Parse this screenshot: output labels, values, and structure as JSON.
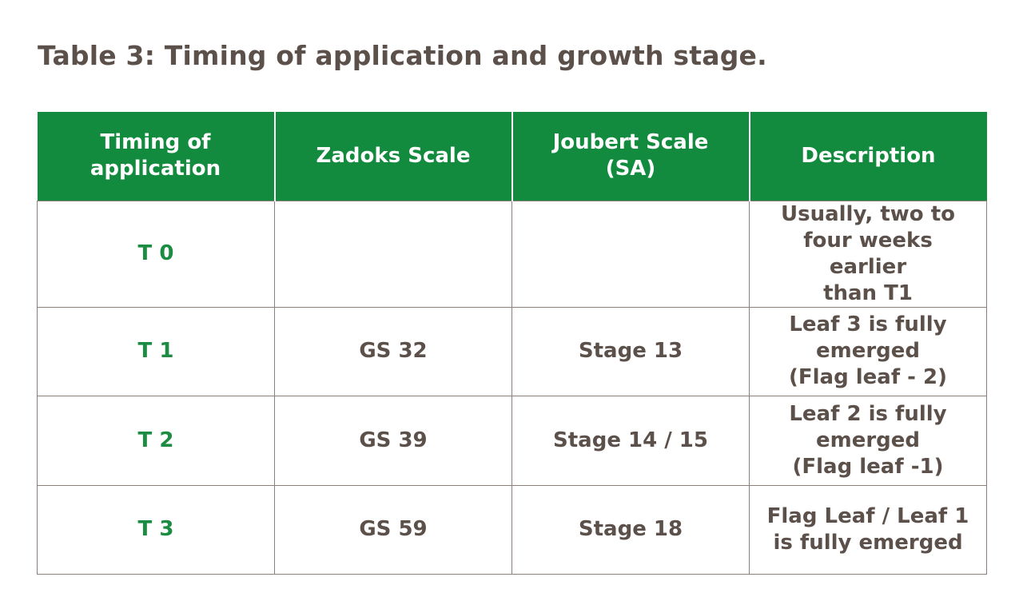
{
  "title": "Table 3: Timing of application and growth stage.",
  "colors": {
    "header_bg": "#138b3f",
    "timing_text": "#1d8c43",
    "body_text": "#5c504b"
  },
  "table": {
    "headers": {
      "timing": [
        "Timing of",
        "application"
      ],
      "zadoks": "Zadoks Scale",
      "joubert": "Joubert Scale (SA)",
      "description": "Description"
    },
    "rows": [
      {
        "timing": "T 0",
        "zadoks": "",
        "joubert": "",
        "description": [
          "Usually, two to",
          "four weeks earlier",
          "than T1"
        ]
      },
      {
        "timing": "T 1",
        "zadoks": "GS 32",
        "joubert": "Stage 13",
        "description": [
          "Leaf 3 is fully",
          "emerged",
          "(Flag leaf - 2)"
        ]
      },
      {
        "timing": "T 2",
        "zadoks": "GS 39",
        "joubert": "Stage 14 / 15",
        "description": [
          "Leaf 2 is fully",
          "emerged",
          "(Flag leaf -1)"
        ]
      },
      {
        "timing": "T 3",
        "zadoks": "GS 59",
        "joubert": "Stage 18",
        "description": [
          "Flag Leaf / Leaf 1",
          "is fully emerged"
        ]
      }
    ]
  }
}
